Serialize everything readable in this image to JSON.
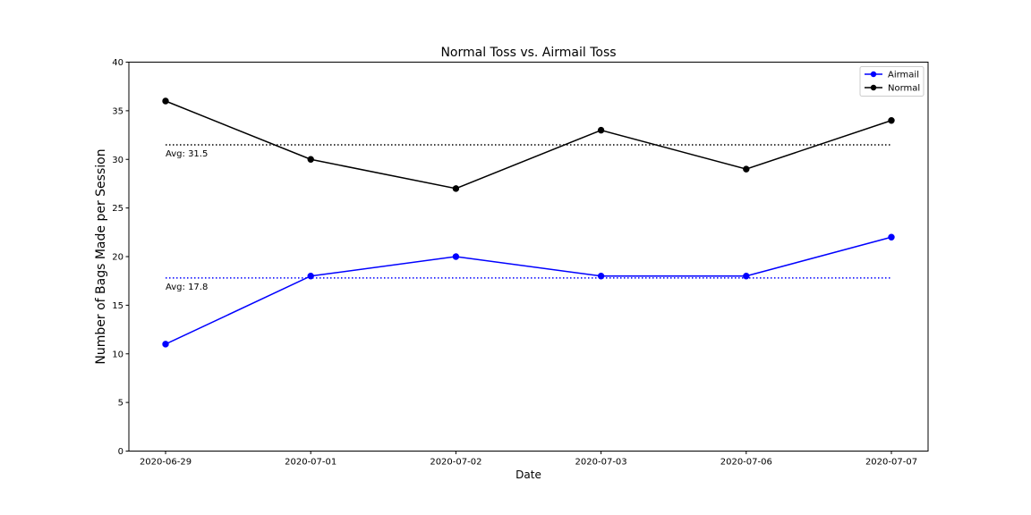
{
  "chart_data": {
    "type": "line",
    "title": "Normal Toss vs. Airmail Toss",
    "xlabel": "Date",
    "ylabel": "Number of Bags Made per Session",
    "categories": [
      "2020-06-29",
      "2020-07-01",
      "2020-07-02",
      "2020-07-03",
      "2020-07-06",
      "2020-07-07"
    ],
    "ylim": [
      0,
      40
    ],
    "yticks": [
      0,
      5,
      10,
      15,
      20,
      25,
      30,
      35,
      40
    ],
    "grid": false,
    "legend_position": "top-right",
    "series": [
      {
        "name": "Airmail",
        "color": "#0000ff",
        "values": [
          11,
          18,
          20,
          18,
          18,
          22
        ]
      },
      {
        "name": "Normal",
        "color": "#000000",
        "values": [
          36,
          30,
          27,
          33,
          29,
          34
        ]
      }
    ],
    "averages": [
      {
        "series": "Airmail",
        "value": 17.8,
        "label": "Avg: 17.8",
        "color": "#0000ff"
      },
      {
        "series": "Normal",
        "value": 31.5,
        "label": "Avg: 31.5",
        "color": "#000000"
      }
    ]
  }
}
